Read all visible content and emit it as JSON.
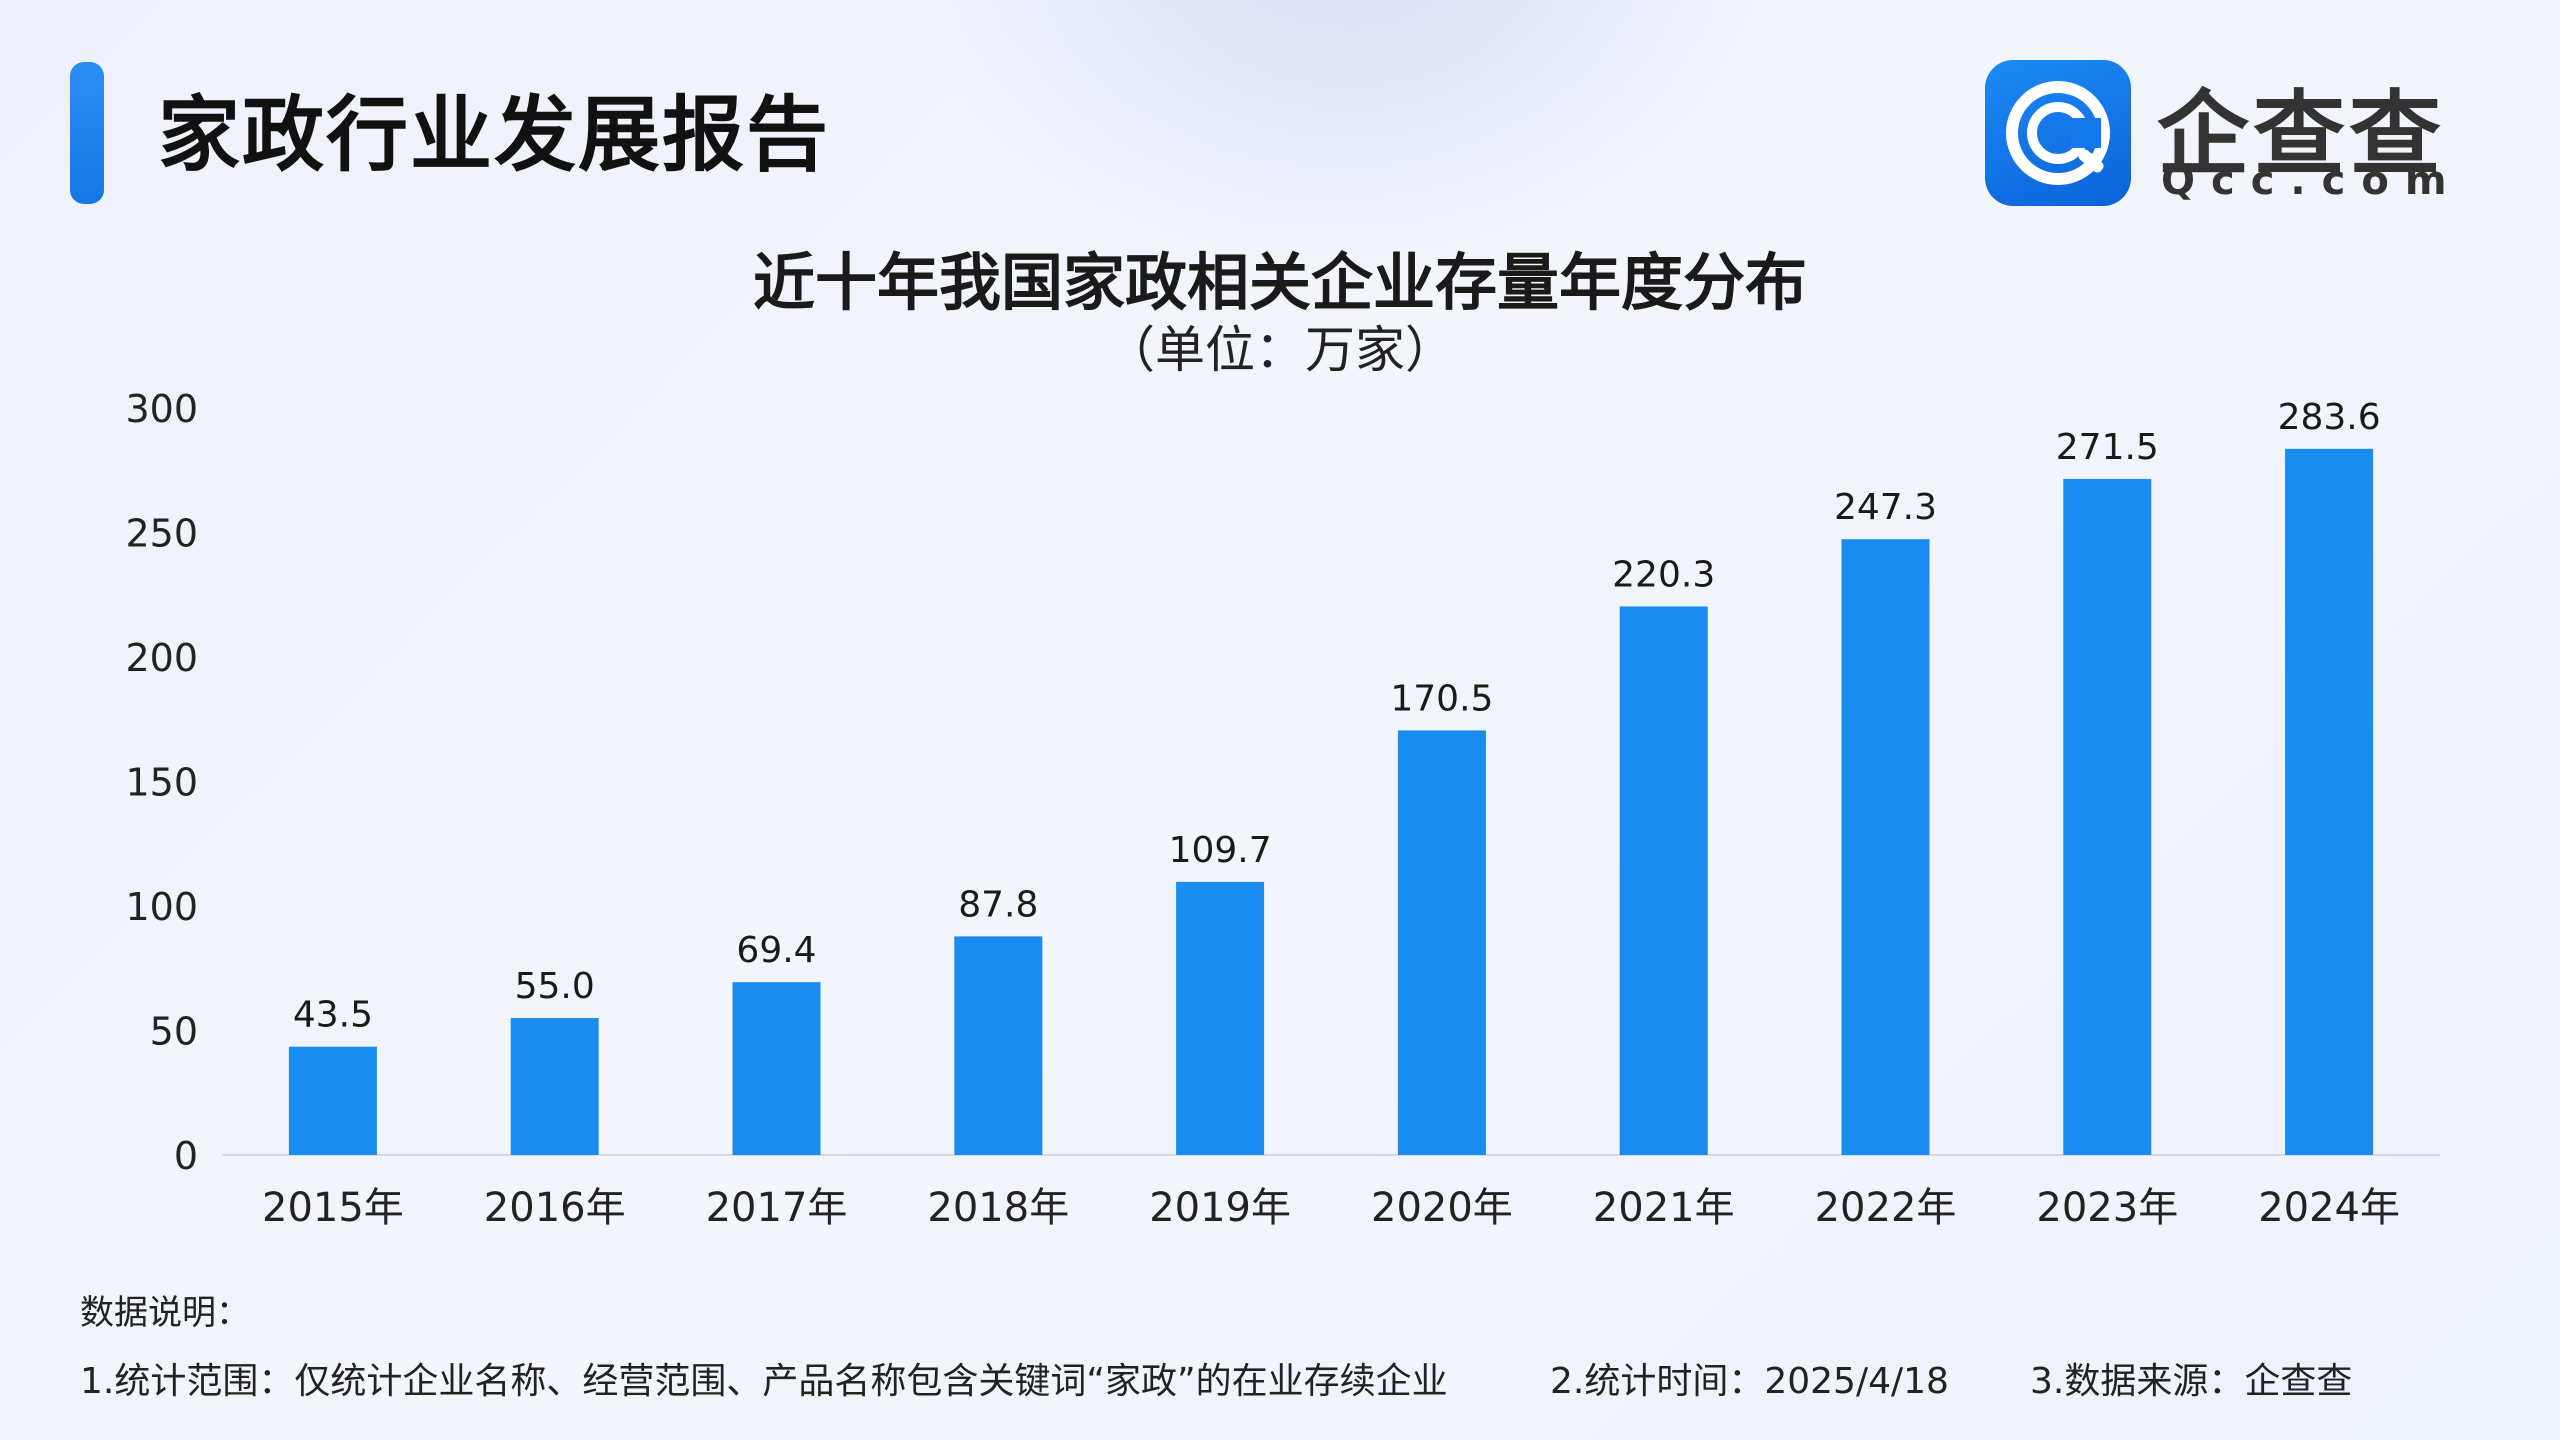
{
  "header": {
    "report_title": "家政行业发展报告",
    "logo_name": "企查查",
    "logo_domain": "Qcc.com"
  },
  "chart_data": {
    "type": "bar",
    "title": "近十年我国家政相关企业存量年度分布",
    "subtitle": "（单位：万家）",
    "categories": [
      "2015年",
      "2016年",
      "2017年",
      "2018年",
      "2019年",
      "2020年",
      "2021年",
      "2022年",
      "2023年",
      "2024年"
    ],
    "values": [
      43.5,
      55.0,
      69.4,
      87.8,
      109.7,
      170.5,
      220.3,
      247.3,
      271.5,
      283.6
    ],
    "value_labels": [
      "43.5",
      "55.0",
      "69.4",
      "87.8",
      "109.7",
      "170.5",
      "220.3",
      "247.3",
      "271.5",
      "283.6"
    ],
    "ylim": [
      0,
      300
    ],
    "yticks": [
      0,
      50,
      100,
      150,
      200,
      250,
      300
    ],
    "xlabel": "",
    "ylabel": "",
    "grid": false,
    "bar_color": "#1a8cf0"
  },
  "notes": {
    "heading": "数据说明：",
    "items": [
      "1.统计范围：仅统计企业名称、经营范围、产品名称包含关键词“家政”的在业存续企业",
      "2.统计时间：2025/4/18",
      "3.数据来源：企查查"
    ]
  }
}
